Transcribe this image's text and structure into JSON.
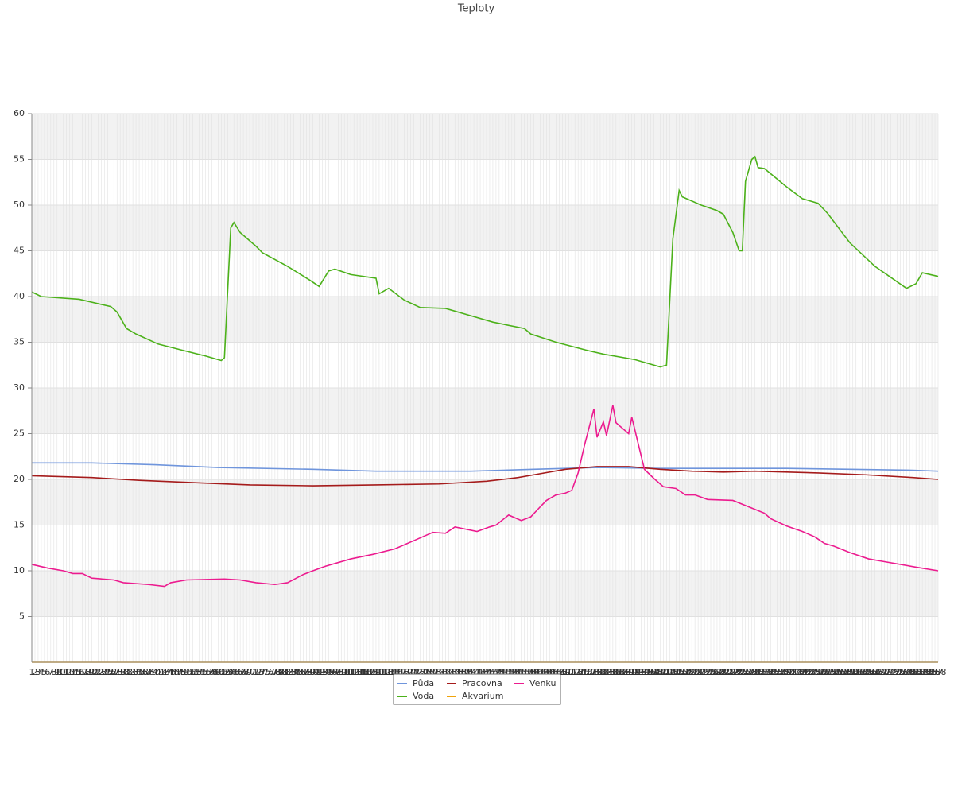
{
  "chart_data": {
    "type": "line",
    "title": "Teploty",
    "xlim": [
      1,
      288
    ],
    "xticks": [
      1,
      2,
      3,
      4,
      5,
      6,
      7,
      8,
      9,
      10,
      11,
      12,
      13,
      14,
      15,
      16,
      17,
      18,
      19,
      20,
      21,
      22,
      23,
      24,
      25,
      26,
      27,
      28,
      29,
      30,
      31,
      32,
      33,
      34,
      35,
      36,
      37,
      38,
      39,
      40,
      41,
      42,
      43,
      44,
      45,
      46,
      47,
      48,
      49,
      50,
      51,
      52,
      53,
      54,
      55,
      56,
      57,
      58,
      59,
      60,
      61,
      62,
      63,
      64,
      65,
      66,
      67,
      68,
      69,
      70,
      71,
      72,
      73,
      74,
      75,
      76,
      77,
      78,
      79,
      80,
      81,
      82,
      83,
      84,
      85,
      86,
      87,
      88,
      89,
      90,
      91,
      92,
      93,
      94,
      95,
      96,
      97,
      98,
      99,
      100,
      101,
      102,
      103,
      104,
      105,
      106,
      107,
      108,
      109,
      110,
      111,
      112,
      113,
      114,
      115,
      116,
      117,
      118,
      119,
      120,
      121,
      122,
      123,
      124,
      125,
      126,
      127,
      128,
      129,
      130,
      131,
      132,
      133,
      134,
      135,
      136,
      137,
      138,
      139,
      140,
      141,
      142,
      143,
      144,
      145,
      146,
      147,
      148,
      149,
      150,
      151,
      152,
      153,
      154,
      155,
      156,
      157,
      158,
      159,
      160,
      161,
      162,
      163,
      164,
      165,
      166,
      167,
      168,
      169,
      170,
      171,
      172,
      173,
      174,
      175,
      176,
      177,
      178,
      179,
      180,
      181,
      182,
      183,
      184,
      185,
      186,
      187,
      188,
      189,
      190,
      191,
      192,
      193,
      194,
      195,
      196,
      197,
      198,
      199,
      200,
      201,
      202,
      203,
      204,
      205,
      206,
      207,
      208,
      209,
      210,
      211,
      212,
      213,
      214,
      215,
      216,
      217,
      218,
      219,
      220,
      221,
      222,
      223,
      224,
      225,
      226,
      227,
      228,
      229,
      230,
      231,
      232,
      233,
      234,
      235,
      236,
      237,
      238,
      239,
      240,
      241,
      242,
      243,
      244,
      245,
      246,
      247,
      248,
      249,
      250,
      251,
      252,
      253,
      254,
      255,
      256,
      257,
      258,
      259,
      260,
      261,
      262,
      263,
      264,
      265,
      266,
      267,
      268,
      269,
      270,
      271,
      272,
      273,
      274,
      275,
      276,
      277,
      278,
      279,
      280,
      281,
      282,
      283,
      284,
      285,
      286,
      287,
      288
    ],
    "ylim": [
      0,
      60
    ],
    "yticks": [
      5,
      10,
      15,
      20,
      25,
      30,
      35,
      40,
      45,
      50,
      55,
      60
    ],
    "grid": true,
    "legend": "bottom",
    "series": [
      {
        "name": "Půda",
        "color": "#6f95dc",
        "x": [
          1,
          20,
          40,
          60,
          90,
          110,
          140,
          160,
          180,
          200,
          220,
          240,
          260,
          280,
          288
        ],
        "values": [
          21.8,
          21.8,
          21.6,
          21.3,
          21.1,
          20.9,
          20.9,
          21.1,
          21.3,
          21.2,
          21.2,
          21.2,
          21.1,
          21.0,
          20.9
        ]
      },
      {
        "name": "Pracovna",
        "color": "#a51b1b",
        "x": [
          1,
          20,
          35,
          55,
          70,
          90,
          110,
          130,
          145,
          155,
          160,
          170,
          180,
          190,
          200,
          210,
          220,
          230,
          250,
          265,
          280,
          288
        ],
        "values": [
          20.4,
          20.2,
          19.9,
          19.6,
          19.4,
          19.3,
          19.4,
          19.5,
          19.8,
          20.2,
          20.5,
          21.1,
          21.4,
          21.4,
          21.1,
          20.9,
          20.8,
          20.9,
          20.7,
          20.5,
          20.2,
          20.0
        ]
      },
      {
        "name": "Venku",
        "color": "#ec1b8f",
        "x": [
          1,
          6,
          11,
          14,
          17,
          20,
          27,
          30,
          38,
          43,
          45,
          50,
          62,
          67,
          72,
          78,
          82,
          87,
          90,
          94,
          102,
          109,
          116,
          122,
          128,
          132,
          135,
          142,
          146,
          148,
          152,
          156,
          159,
          162,
          164,
          167,
          170,
          172,
          174,
          176,
          179,
          180,
          182,
          183,
          185,
          186,
          190,
          191,
          195,
          198,
          201,
          205,
          208,
          211,
          215,
          223,
          228,
          233,
          235,
          240,
          245,
          249,
          252,
          255,
          260,
          266,
          271,
          281,
          288
        ],
        "values": [
          10.7,
          10.3,
          10.0,
          9.7,
          9.7,
          9.2,
          9.0,
          8.7,
          8.5,
          8.3,
          8.7,
          9.0,
          9.1,
          9.0,
          8.7,
          8.5,
          8.7,
          9.6,
          10.0,
          10.5,
          11.3,
          11.8,
          12.4,
          13.3,
          14.2,
          14.1,
          14.8,
          14.3,
          14.8,
          15.0,
          16.1,
          15.5,
          15.9,
          17.0,
          17.7,
          18.3,
          18.5,
          18.8,
          20.7,
          23.7,
          27.7,
          24.6,
          26.3,
          24.8,
          28.1,
          26.2,
          25.0,
          26.8,
          21.1,
          20.1,
          19.2,
          19.0,
          18.3,
          18.3,
          17.8,
          17.7,
          17.0,
          16.3,
          15.7,
          14.9,
          14.3,
          13.7,
          13.0,
          12.7,
          12.0,
          11.3,
          11.0,
          10.4,
          10.0
        ]
      },
      {
        "name": "Voda",
        "color": "#4cb11a",
        "x": [
          1,
          4,
          16,
          26,
          28,
          31,
          34,
          41,
          49,
          56,
          61,
          62,
          64,
          65,
          67,
          72,
          74,
          82,
          89,
          92,
          95,
          97,
          102,
          110,
          111,
          114,
          119,
          124,
          132,
          140,
          147,
          157,
          159,
          167,
          177,
          182,
          192,
          200,
          202,
          204,
          206,
          207,
          213,
          218,
          220,
          223,
          225,
          226,
          227,
          229,
          230,
          231,
          233,
          240,
          245,
          250,
          253,
          260,
          268,
          278,
          281,
          283,
          288
        ],
        "values": [
          40.5,
          40.0,
          39.7,
          38.9,
          38.3,
          36.5,
          35.9,
          34.8,
          34.1,
          33.5,
          33.0,
          33.3,
          47.5,
          48.1,
          47.0,
          45.5,
          44.8,
          43.3,
          41.8,
          41.1,
          42.8,
          43.0,
          42.4,
          42.0,
          40.3,
          40.9,
          39.6,
          38.8,
          38.7,
          37.9,
          37.2,
          36.5,
          35.9,
          35.0,
          34.1,
          33.7,
          33.1,
          32.3,
          32.5,
          46.3,
          51.6,
          50.9,
          50.0,
          49.4,
          49.0,
          47.0,
          45.0,
          45.0,
          52.6,
          55.0,
          55.3,
          54.1,
          54.0,
          52.0,
          50.7,
          50.2,
          49.1,
          45.9,
          43.3,
          40.9,
          41.4,
          42.6,
          42.2
        ]
      },
      {
        "name": "Akvarium",
        "color": "#f0a30a",
        "x": [
          1,
          288
        ],
        "values": [
          0,
          0
        ]
      }
    ]
  }
}
